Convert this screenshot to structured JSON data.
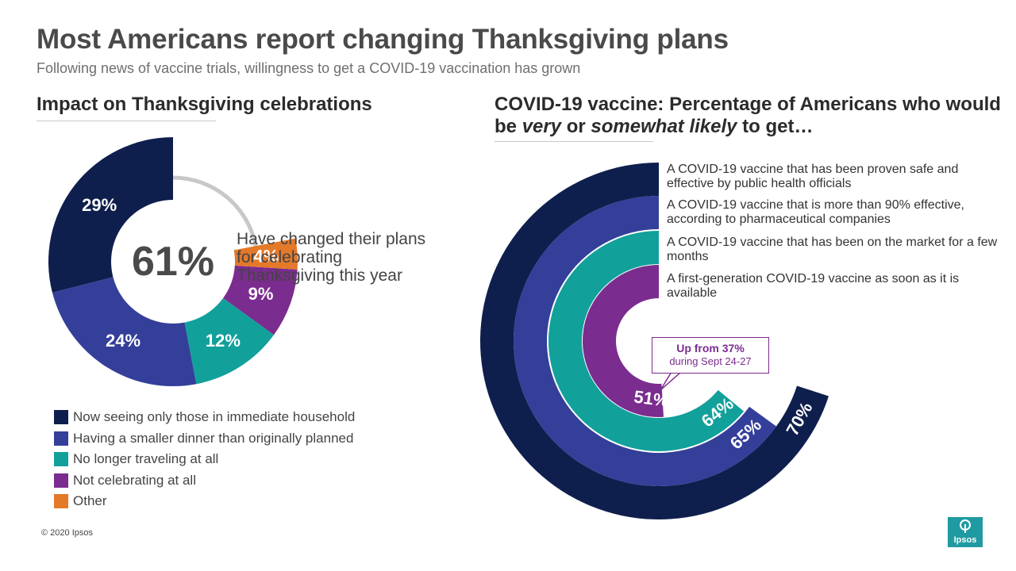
{
  "title": "Most Americans report changing Thanksgiving plans",
  "subtitle": "Following news of vaccine trials, willingness to get a COVID-19 vaccination has grown",
  "left": {
    "heading": "Impact on Thanksgiving celebrations",
    "center_value": "61%",
    "center_description": "Have changed their plans for celebrating Thanksgiving this year"
  },
  "right": {
    "heading_part1": "COVID-19 vaccine: Percentage of Americans who would be ",
    "heading_em1": "very",
    "heading_part2": " or ",
    "heading_em2": "somewhat likely",
    "heading_part3": " to get…",
    "callout_main": "Up from 37%",
    "callout_sub": "during Sept 24-27"
  },
  "copyright": "© 2020 Ipsos",
  "logo_text": "Ipsos",
  "chart_data": [
    {
      "type": "pie",
      "subtype": "donut",
      "title": "Impact on Thanksgiving celebrations",
      "total_label": "61%",
      "categories": [
        "Now seeing only those in immediate household",
        "Having a smaller dinner than originally planned",
        "No longer traveling at all",
        "Not celebrating at all",
        "Other"
      ],
      "values": [
        29,
        24,
        12,
        9,
        4
      ],
      "value_labels": [
        "29%",
        "24%",
        "12%",
        "9%",
        "4%"
      ],
      "colors": [
        "#0f1f4d",
        "#343f9a",
        "#12a09b",
        "#7b2c8f",
        "#e4792a"
      ],
      "remainder_color": "#c8c8c8",
      "legend_position": "bottom-left"
    },
    {
      "type": "bar",
      "subtype": "radial",
      "title": "COVID-19 vaccine: Percentage of Americans who would be very or somewhat likely to get…",
      "categories": [
        "A COVID-19 vaccine that has been proven safe and effective by public health officials",
        "A COVID-19 vaccine that is more than 90% effective, according to pharmaceutical companies",
        "A COVID-19 vaccine that has been on the market for a few months",
        "A first-generation COVID-19 vaccine as soon as it is available"
      ],
      "values": [
        70,
        65,
        64,
        51
      ],
      "value_labels": [
        "70%",
        "65%",
        "64%",
        "51%"
      ],
      "colors": [
        "#0f1f4d",
        "#343f9a",
        "#12a09b",
        "#7b2c8f"
      ],
      "annotation": "Up from 37% during Sept 24-27"
    }
  ]
}
